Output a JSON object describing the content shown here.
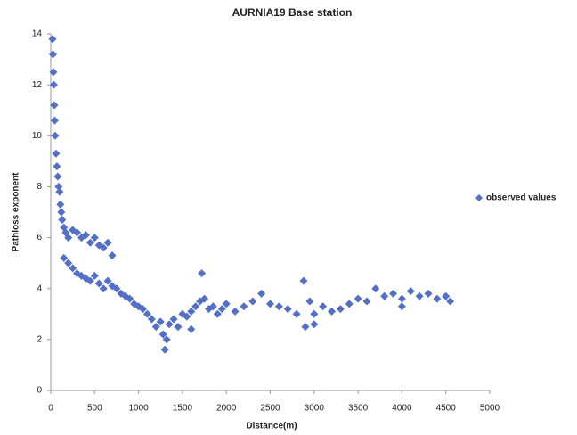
{
  "chart_data": {
    "type": "scatter",
    "title": "AURNIA19 Base station",
    "x_label": "Distance(m)",
    "y_label": "Pathloss exponent",
    "series": [
      {
        "name": "observed values",
        "color": "#5470c6",
        "x": [
          20,
          25,
          30,
          35,
          40,
          45,
          50,
          60,
          70,
          80,
          90,
          100,
          110,
          120,
          130,
          150,
          170,
          200,
          250,
          300,
          350,
          400,
          450,
          500,
          550,
          600,
          650,
          700,
          150,
          200,
          250,
          300,
          350,
          400,
          450,
          500,
          550,
          600,
          650,
          700,
          750,
          800,
          850,
          900,
          950,
          1000,
          1050,
          1100,
          1150,
          1200,
          1250,
          1280,
          1300,
          1320,
          1350,
          1400,
          1450,
          1500,
          1550,
          1600,
          1650,
          1700,
          1720,
          1750,
          1800,
          1850,
          1900,
          1950,
          2000,
          2100,
          2200,
          2300,
          2400,
          2500,
          2600,
          2700,
          2800,
          2880,
          2900,
          2950,
          3000,
          3100,
          3200,
          3300,
          3400,
          3500,
          3600,
          3700,
          3800,
          3900,
          4000,
          4100,
          4200,
          4300,
          4400,
          4500,
          4550,
          1600,
          3000,
          4000
        ],
        "values": [
          13.8,
          13.2,
          12.5,
          12.0,
          11.2,
          10.6,
          10.0,
          9.3,
          8.8,
          8.4,
          8.0,
          7.8,
          7.3,
          7.0,
          6.7,
          6.4,
          6.2,
          6.0,
          6.3,
          6.2,
          6.0,
          6.1,
          5.8,
          6.0,
          5.7,
          5.6,
          5.8,
          5.3,
          5.2,
          5.0,
          4.8,
          4.6,
          4.5,
          4.4,
          4.3,
          4.5,
          4.2,
          4.0,
          4.3,
          4.1,
          4.0,
          3.8,
          3.7,
          3.6,
          3.4,
          3.3,
          3.2,
          3.0,
          2.8,
          2.5,
          2.7,
          2.2,
          1.6,
          2.0,
          2.6,
          2.8,
          2.5,
          3.0,
          2.9,
          3.1,
          3.3,
          3.5,
          4.6,
          3.6,
          3.2,
          3.3,
          3.0,
          3.2,
          3.4,
          3.1,
          3.3,
          3.5,
          3.8,
          3.4,
          3.3,
          3.2,
          3.0,
          4.3,
          2.5,
          3.5,
          3.0,
          3.3,
          3.1,
          3.2,
          3.4,
          3.6,
          3.5,
          4.0,
          3.7,
          3.8,
          3.6,
          3.9,
          3.7,
          3.8,
          3.6,
          3.7,
          3.5,
          2.4,
          2.6,
          3.3
        ]
      }
    ],
    "xlim": [
      0,
      5000
    ],
    "xticks": [
      0,
      500,
      1000,
      1500,
      2000,
      2500,
      3000,
      3500,
      4000,
      4500,
      5000
    ],
    "ylim": [
      0,
      14
    ],
    "yticks": [
      0,
      2,
      4,
      6,
      8,
      10,
      12,
      14
    ],
    "grid": false,
    "legend": "right"
  }
}
